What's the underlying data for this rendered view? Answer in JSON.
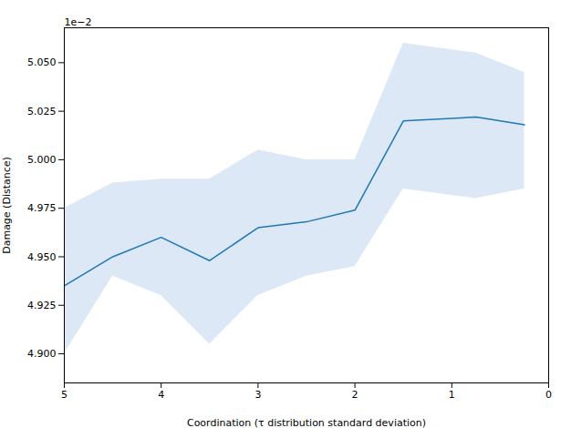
{
  "chart_data": {
    "type": "line",
    "xlabel": "Coordination (τ distribution standard deviation)",
    "ylabel": "Damage (Distance)",
    "x": [
      5.0,
      4.5,
      4.0,
      3.5,
      3.0,
      2.5,
      2.0,
      1.5,
      0.75,
      0.25
    ],
    "series": [
      {
        "type": "area",
        "color": "#c6d9f0",
        "lower": [
          0.049,
          0.0494,
          0.0493,
          0.04905,
          0.0493,
          0.0494,
          0.04945,
          0.04985,
          0.0498,
          0.04985
        ],
        "upper": [
          0.04975,
          0.04988,
          0.0499,
          0.0499,
          0.05005,
          0.05,
          0.05,
          0.0506,
          0.05055,
          0.05045
        ]
      },
      {
        "type": "line",
        "color": "#1f77b4",
        "values": [
          0.04935,
          0.0495,
          0.0496,
          0.04948,
          0.04965,
          0.04968,
          0.04974,
          0.0502,
          0.05022,
          0.05018
        ]
      }
    ],
    "xlim": [
      5,
      0
    ],
    "xticks": [
      5,
      4,
      3,
      2,
      1,
      0
    ],
    "ylim": [
      0.04885,
      0.05068
    ],
    "yticks": [
      {
        "value": 0.049,
        "label": "4.900"
      },
      {
        "value": 0.04925,
        "label": "4.925"
      },
      {
        "value": 0.0495,
        "label": "4.950"
      },
      {
        "value": 0.04975,
        "label": "4.975"
      },
      {
        "value": 0.05,
        "label": "5.000"
      },
      {
        "value": 0.05025,
        "label": "5.025"
      },
      {
        "value": 0.0505,
        "label": "5.050"
      }
    ],
    "annotations": [
      {
        "text": "1e−2"
      }
    ],
    "grid": false
  }
}
